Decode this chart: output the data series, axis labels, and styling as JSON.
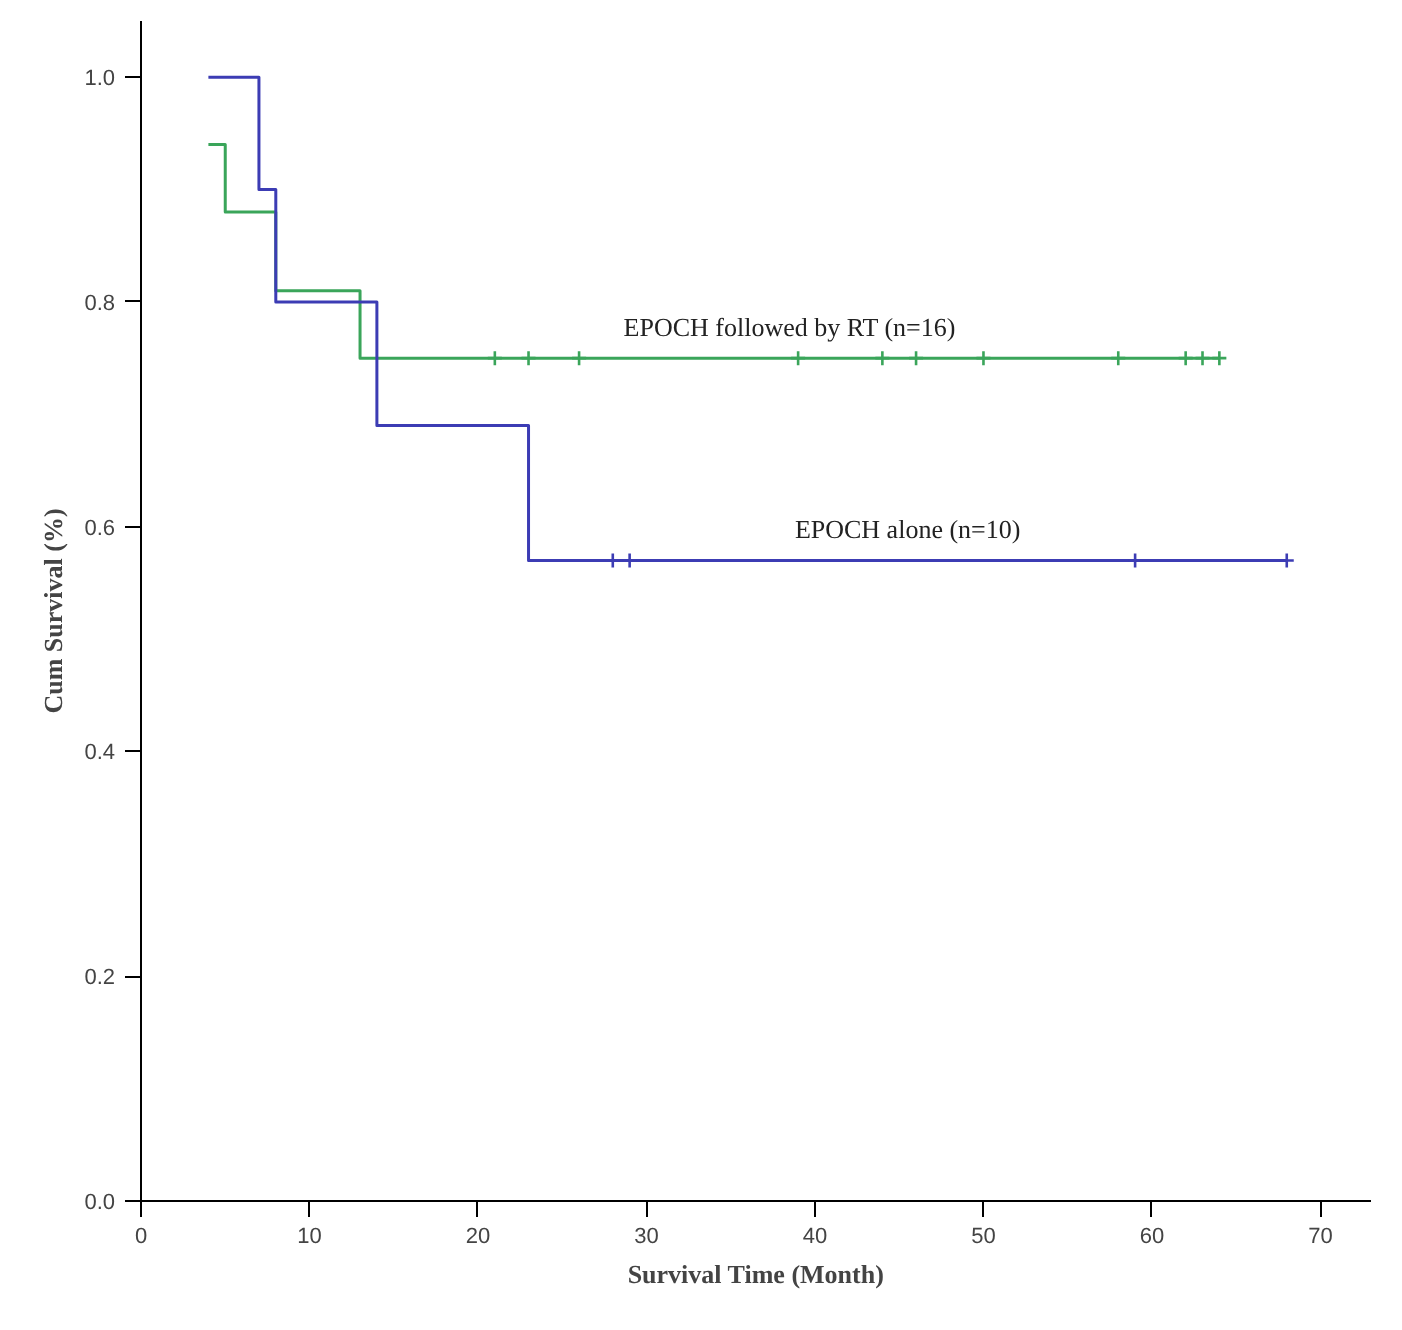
{
  "chart_data": {
    "type": "step",
    "xlabel": "Survival Time (Month)",
    "ylabel": "Cum Survival (%)",
    "xlim": [
      0,
      73
    ],
    "ylim": [
      0,
      1.05
    ],
    "xticks": [
      0,
      10,
      20,
      30,
      40,
      50,
      60,
      70
    ],
    "yticks": [
      {
        "value": 0,
        "label": "0.0"
      },
      0.2,
      0.4,
      0.6,
      0.8,
      {
        "value": 1,
        "label": "1.0"
      }
    ],
    "grid": false,
    "legend": false,
    "series": [
      {
        "name": "EPOCH followed by RT (n=16)",
        "color": "#3aa55a",
        "x": [
          4,
          5,
          8,
          13,
          64
        ],
        "values": [
          0.94,
          0.88,
          0.81,
          0.75,
          0.75
        ]
      },
      {
        "name": "EPOCH alone (n=10)",
        "color": "#3c3cb4",
        "x": [
          4,
          7,
          8,
          14,
          23,
          68
        ],
        "values": [
          1.0,
          0.9,
          0.8,
          0.69,
          0.57,
          0.57
        ]
      },
      {
        "type": "scatter",
        "marker": "cross",
        "color": "#3aa55a",
        "x": [
          21,
          23,
          26,
          39,
          44,
          46,
          50,
          58,
          62,
          63,
          64
        ],
        "values": [
          0.75,
          0.75,
          0.75,
          0.75,
          0.75,
          0.75,
          0.75,
          0.75,
          0.75,
          0.75,
          0.75
        ]
      },
      {
        "type": "scatter",
        "marker": "cross",
        "color": "#3c3cb4",
        "x": [
          28,
          29,
          59,
          68
        ],
        "values": [
          0.57,
          0.57,
          0.57,
          0.57
        ]
      }
    ]
  }
}
